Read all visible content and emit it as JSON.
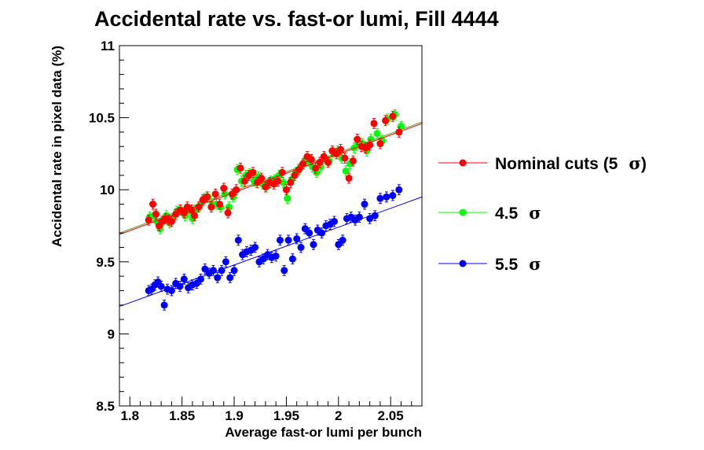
{
  "chart_data": {
    "type": "scatter",
    "title": "Accidental rate vs. fast-or lumi, Fill 4444",
    "xlabel": "Average fast-or lumi per bunch",
    "ylabel": "Accidental rate in pixel data (%)",
    "xlim": [
      1.79,
      2.08
    ],
    "ylim": [
      8.5,
      11
    ],
    "xticks": [
      "1.8",
      "1.85",
      "1.9",
      "1.95",
      "2",
      "2.05"
    ],
    "yticks": [
      "8.5",
      "9",
      "9.5",
      "10",
      "10.5",
      "11"
    ],
    "grid": false,
    "legend_position": "right",
    "sigma_symbol": "σ",
    "series": [
      {
        "name": "Nominal cuts (5",
        "name_suffix": ")",
        "color": "#ff0000",
        "fit": [
          [
            1.79,
            9.69
          ],
          [
            2.08,
            10.46
          ]
        ],
        "x": [
          1.818,
          1.822,
          1.825,
          1.828,
          1.831,
          1.834,
          1.837,
          1.84,
          1.844,
          1.848,
          1.852,
          1.855,
          1.859,
          1.862,
          1.866,
          1.87,
          1.874,
          1.878,
          1.882,
          1.886,
          1.89,
          1.894,
          1.898,
          1.902,
          1.906,
          1.91,
          1.914,
          1.918,
          1.922,
          1.926,
          1.93,
          1.934,
          1.938,
          1.942,
          1.946,
          1.95,
          1.954,
          1.958,
          1.962,
          1.966,
          1.97,
          1.974,
          1.978,
          1.982,
          1.986,
          1.99,
          1.994,
          1.998,
          2.002,
          2.006,
          2.01,
          2.014,
          2.018,
          2.022,
          2.026,
          2.03,
          2.034,
          2.04,
          2.045,
          2.052,
          2.058
        ],
        "y": [
          9.79,
          9.9,
          9.83,
          9.75,
          9.78,
          9.8,
          9.79,
          9.78,
          9.83,
          9.86,
          9.84,
          9.88,
          9.86,
          9.82,
          9.88,
          9.93,
          9.95,
          9.88,
          9.97,
          9.9,
          10.01,
          9.84,
          9.97,
          10.0,
          10.15,
          10.06,
          10.1,
          10.12,
          10.05,
          10.08,
          10.02,
          10.05,
          10.04,
          10.06,
          10.12,
          10.0,
          10.05,
          10.1,
          10.14,
          10.18,
          10.23,
          10.21,
          10.15,
          10.19,
          10.23,
          10.19,
          10.27,
          10.25,
          10.28,
          10.22,
          10.08,
          10.2,
          10.35,
          10.3,
          10.29,
          10.31,
          10.46,
          10.32,
          10.48,
          10.51,
          10.4
        ]
      },
      {
        "name": "4.5",
        "name_suffix": "",
        "color": "#00ff00",
        "fit": [
          [
            1.79,
            9.7
          ],
          [
            2.08,
            10.47
          ]
        ],
        "x": [
          1.819,
          1.823,
          1.826,
          1.829,
          1.832,
          1.835,
          1.838,
          1.841,
          1.845,
          1.849,
          1.853,
          1.856,
          1.86,
          1.863,
          1.867,
          1.871,
          1.875,
          1.879,
          1.883,
          1.887,
          1.891,
          1.895,
          1.899,
          1.903,
          1.907,
          1.911,
          1.915,
          1.919,
          1.923,
          1.927,
          1.931,
          1.935,
          1.939,
          1.943,
          1.947,
          1.951,
          1.955,
          1.959,
          1.963,
          1.967,
          1.971,
          1.975,
          1.979,
          1.983,
          1.987,
          1.991,
          1.995,
          1.999,
          2.003,
          2.007,
          2.011,
          2.015,
          2.019,
          2.023,
          2.027,
          2.031,
          2.037,
          2.042,
          2.047,
          2.054,
          2.06
        ],
        "y": [
          9.81,
          9.82,
          9.78,
          9.73,
          9.79,
          9.82,
          9.77,
          9.8,
          9.85,
          9.86,
          9.82,
          9.85,
          9.8,
          9.86,
          9.89,
          9.94,
          9.95,
          9.9,
          9.9,
          9.88,
          9.97,
          9.88,
          9.95,
          10.14,
          10.06,
          10.1,
          10.11,
          10.06,
          10.09,
          10.04,
          10.02,
          10.06,
          10.07,
          10.1,
          10.05,
          9.94,
          10.07,
          10.12,
          10.15,
          10.19,
          10.2,
          10.16,
          10.12,
          10.16,
          10.22,
          10.2,
          10.26,
          10.27,
          10.22,
          10.13,
          10.18,
          10.29,
          10.33,
          10.32,
          10.27,
          10.35,
          10.39,
          10.34,
          10.49,
          10.52,
          10.44
        ]
      },
      {
        "name": "5.5",
        "name_suffix": "",
        "color": "#0000ff",
        "fit": [
          [
            1.79,
            9.19
          ],
          [
            2.08,
            9.95
          ]
        ],
        "x": [
          1.818,
          1.821,
          1.824,
          1.827,
          1.83,
          1.833,
          1.836,
          1.84,
          1.844,
          1.848,
          1.852,
          1.856,
          1.86,
          1.864,
          1.868,
          1.872,
          1.876,
          1.88,
          1.884,
          1.888,
          1.892,
          1.896,
          1.9,
          1.904,
          1.908,
          1.912,
          1.916,
          1.92,
          1.924,
          1.928,
          1.932,
          1.936,
          1.94,
          1.944,
          1.948,
          1.952,
          1.956,
          1.96,
          1.964,
          1.968,
          1.972,
          1.976,
          1.98,
          1.984,
          1.988,
          1.992,
          1.996,
          2.0,
          2.004,
          2.008,
          2.012,
          2.016,
          2.02,
          2.025,
          2.03,
          2.035,
          2.04,
          2.046,
          2.052,
          2.058
        ],
        "y": [
          9.3,
          9.31,
          9.34,
          9.36,
          9.33,
          9.2,
          9.31,
          9.3,
          9.35,
          9.33,
          9.38,
          9.32,
          9.34,
          9.35,
          9.38,
          9.45,
          9.42,
          9.44,
          9.39,
          9.44,
          9.5,
          9.39,
          9.44,
          9.65,
          9.55,
          9.57,
          9.58,
          9.6,
          9.5,
          9.52,
          9.55,
          9.53,
          9.54,
          9.65,
          9.44,
          9.65,
          9.52,
          9.66,
          9.6,
          9.73,
          9.7,
          9.62,
          9.72,
          9.7,
          9.75,
          9.76,
          9.78,
          9.62,
          9.65,
          9.8,
          9.81,
          9.79,
          9.81,
          9.9,
          9.8,
          9.82,
          9.94,
          9.95,
          9.96,
          10.0
        ]
      }
    ]
  }
}
